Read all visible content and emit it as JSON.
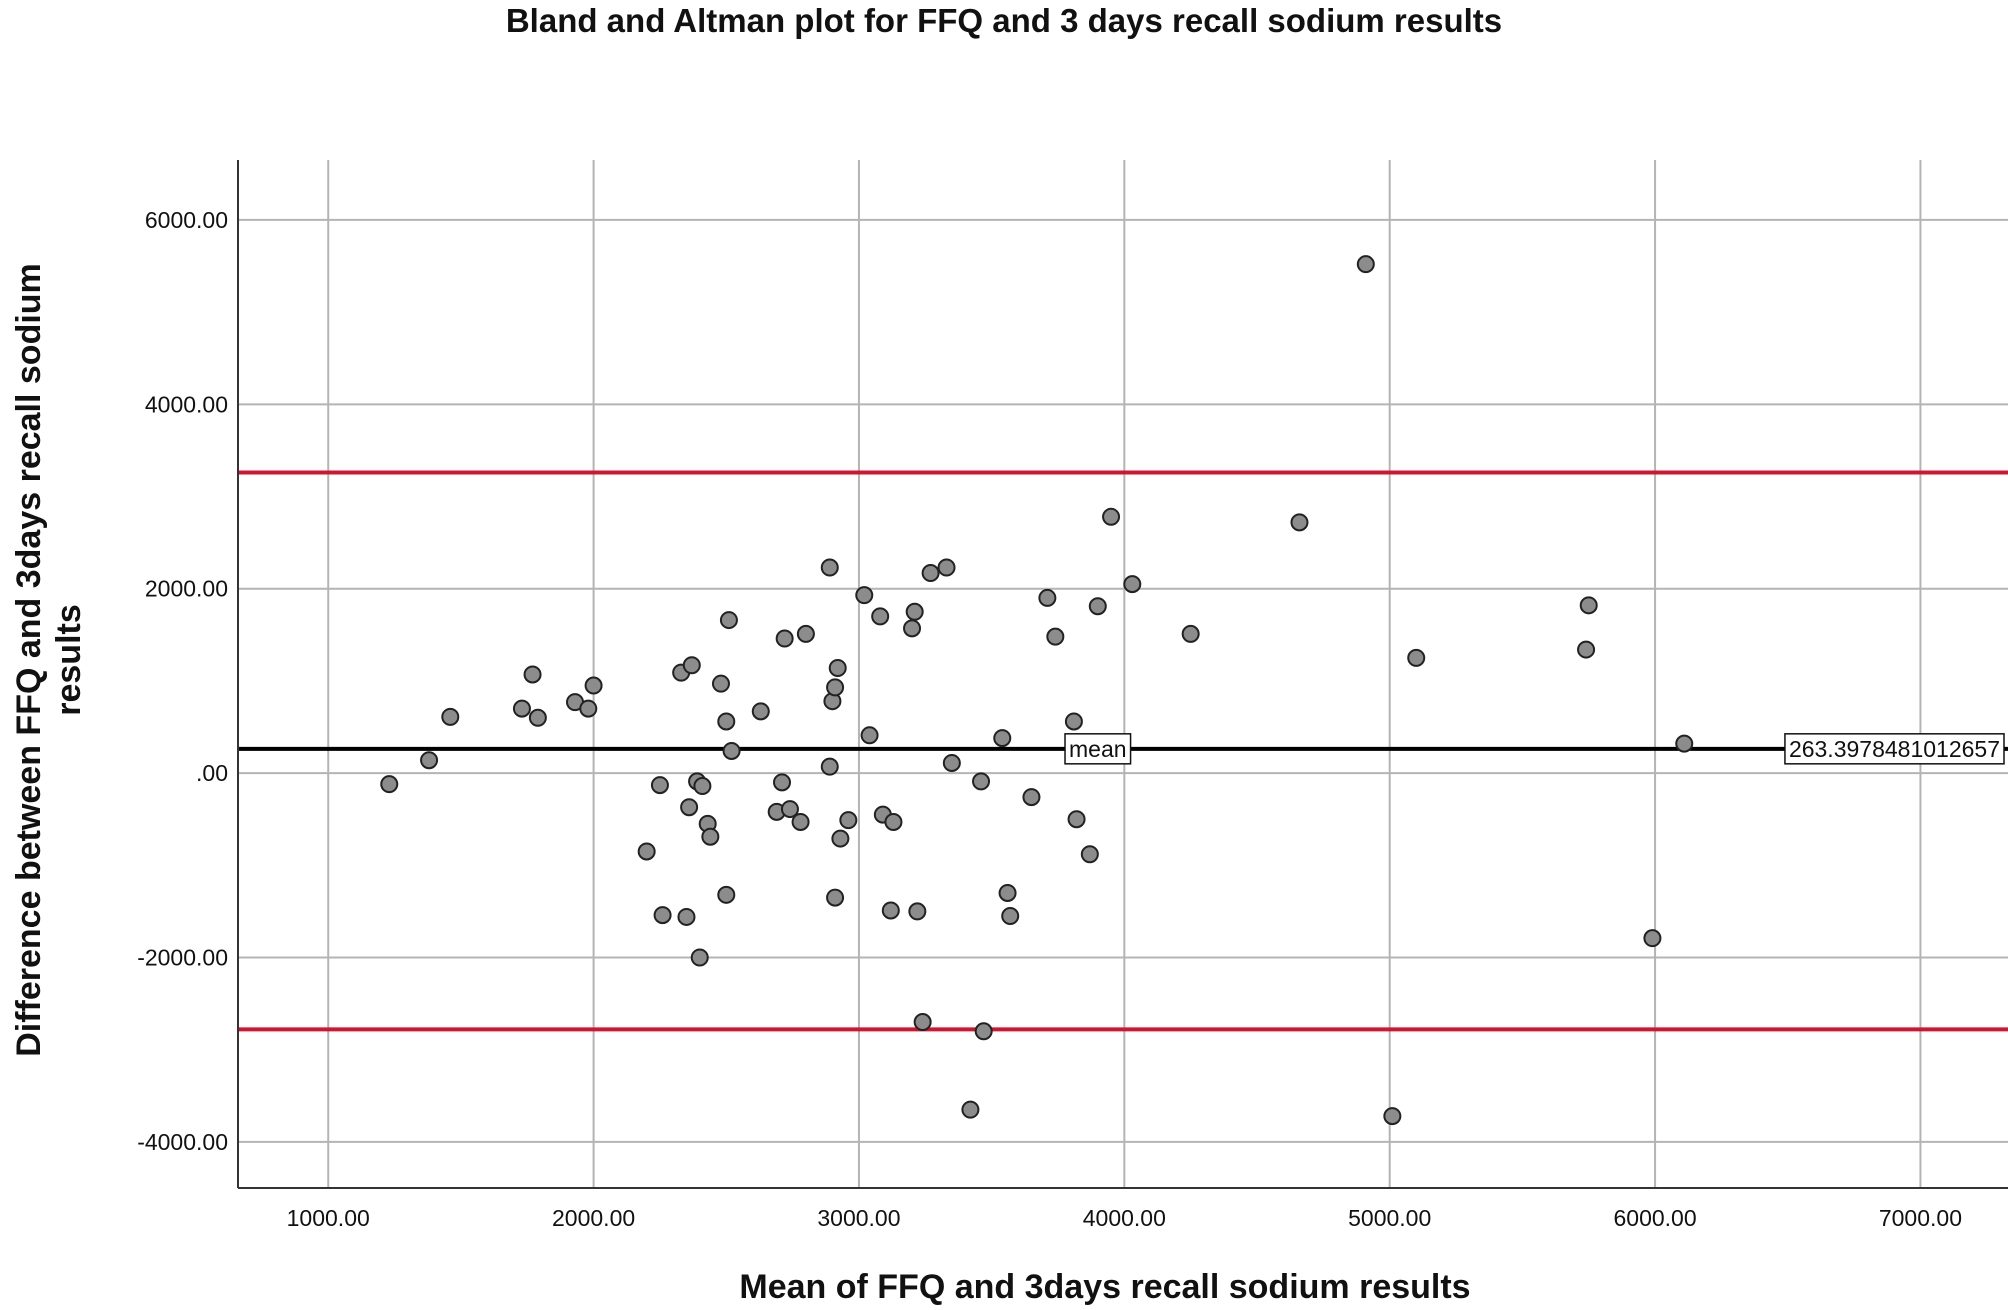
{
  "chart_data": {
    "type": "scatter",
    "title": "Bland and Altman plot for FFQ and 3 days recall sodium results",
    "xlabel": "Mean of FFQ and 3days recall sodium results",
    "ylabel_lines": [
      "Difference between FFQ and 3days recall sodium",
      "results"
    ],
    "xlim": [
      660,
      7330
    ],
    "ylim": [
      -4500,
      6650
    ],
    "xticks": [
      1000,
      2000,
      3000,
      4000,
      5000,
      6000,
      7000
    ],
    "xtick_labels": [
      "1000.00",
      "2000.00",
      "3000.00",
      "4000.00",
      "5000.00",
      "6000.00",
      "7000.00"
    ],
    "yticks": [
      -4000,
      -2000,
      0,
      2000,
      4000,
      6000
    ],
    "ytick_labels": [
      "-4000.00",
      "-2000.00",
      ".00",
      "2000.00",
      "4000.00",
      "6000.00"
    ],
    "grid": true,
    "reference_lines": [
      {
        "name": "upper-limit-of-agreement",
        "y": 3260,
        "color": "#d0152f"
      },
      {
        "name": "mean-difference",
        "y": 263.3978481,
        "color": "#000000"
      },
      {
        "name": "lower-limit-of-agreement",
        "y": -2780,
        "color": "#d0152f"
      }
    ],
    "annotations": {
      "mean_label": "mean",
      "mean_value": "263.3978481012657"
    },
    "point_color": "#8c8c8c",
    "points": [
      [
        1230,
        -120
      ],
      [
        1380,
        140
      ],
      [
        1460,
        610
      ],
      [
        1730,
        700
      ],
      [
        1770,
        1070
      ],
      [
        1790,
        600
      ],
      [
        1930,
        770
      ],
      [
        1980,
        700
      ],
      [
        2000,
        950
      ],
      [
        2200,
        -850
      ],
      [
        2250,
        -130
      ],
      [
        2260,
        -1540
      ],
      [
        2330,
        1090
      ],
      [
        2350,
        -1560
      ],
      [
        2360,
        -370
      ],
      [
        2370,
        1170
      ],
      [
        2390,
        -90
      ],
      [
        2400,
        -2000
      ],
      [
        2410,
        -140
      ],
      [
        2430,
        -550
      ],
      [
        2440,
        -690
      ],
      [
        2480,
        970
      ],
      [
        2500,
        560
      ],
      [
        2500,
        -1320
      ],
      [
        2510,
        1660
      ],
      [
        2520,
        240
      ],
      [
        2630,
        670
      ],
      [
        2690,
        -420
      ],
      [
        2710,
        -100
      ],
      [
        2720,
        1460
      ],
      [
        2740,
        -390
      ],
      [
        2780,
        -530
      ],
      [
        2800,
        1510
      ],
      [
        2890,
        70
      ],
      [
        2890,
        2230
      ],
      [
        2900,
        780
      ],
      [
        2910,
        930
      ],
      [
        2910,
        -1350
      ],
      [
        2920,
        1140
      ],
      [
        2930,
        -710
      ],
      [
        2960,
        -510
      ],
      [
        3020,
        1930
      ],
      [
        3040,
        410
      ],
      [
        3080,
        1700
      ],
      [
        3090,
        -450
      ],
      [
        3120,
        -1490
      ],
      [
        3130,
        -530
      ],
      [
        3200,
        1570
      ],
      [
        3210,
        1750
      ],
      [
        3220,
        -1500
      ],
      [
        3240,
        -2700
      ],
      [
        3270,
        2170
      ],
      [
        3330,
        2230
      ],
      [
        3350,
        110
      ],
      [
        3420,
        -3650
      ],
      [
        3460,
        -90
      ],
      [
        3470,
        -2800
      ],
      [
        3540,
        380
      ],
      [
        3560,
        -1300
      ],
      [
        3570,
        -1550
      ],
      [
        3650,
        -260
      ],
      [
        3710,
        1900
      ],
      [
        3740,
        1480
      ],
      [
        3810,
        560
      ],
      [
        3820,
        -500
      ],
      [
        3870,
        -880
      ],
      [
        3900,
        1810
      ],
      [
        3950,
        2780
      ],
      [
        4030,
        2050
      ],
      [
        4250,
        1510
      ],
      [
        4660,
        2720
      ],
      [
        4910,
        5520
      ],
      [
        5010,
        -3720
      ],
      [
        5100,
        1250
      ],
      [
        5740,
        1340
      ],
      [
        5750,
        1820
      ],
      [
        5990,
        -1790
      ],
      [
        6110,
        320
      ]
    ]
  }
}
